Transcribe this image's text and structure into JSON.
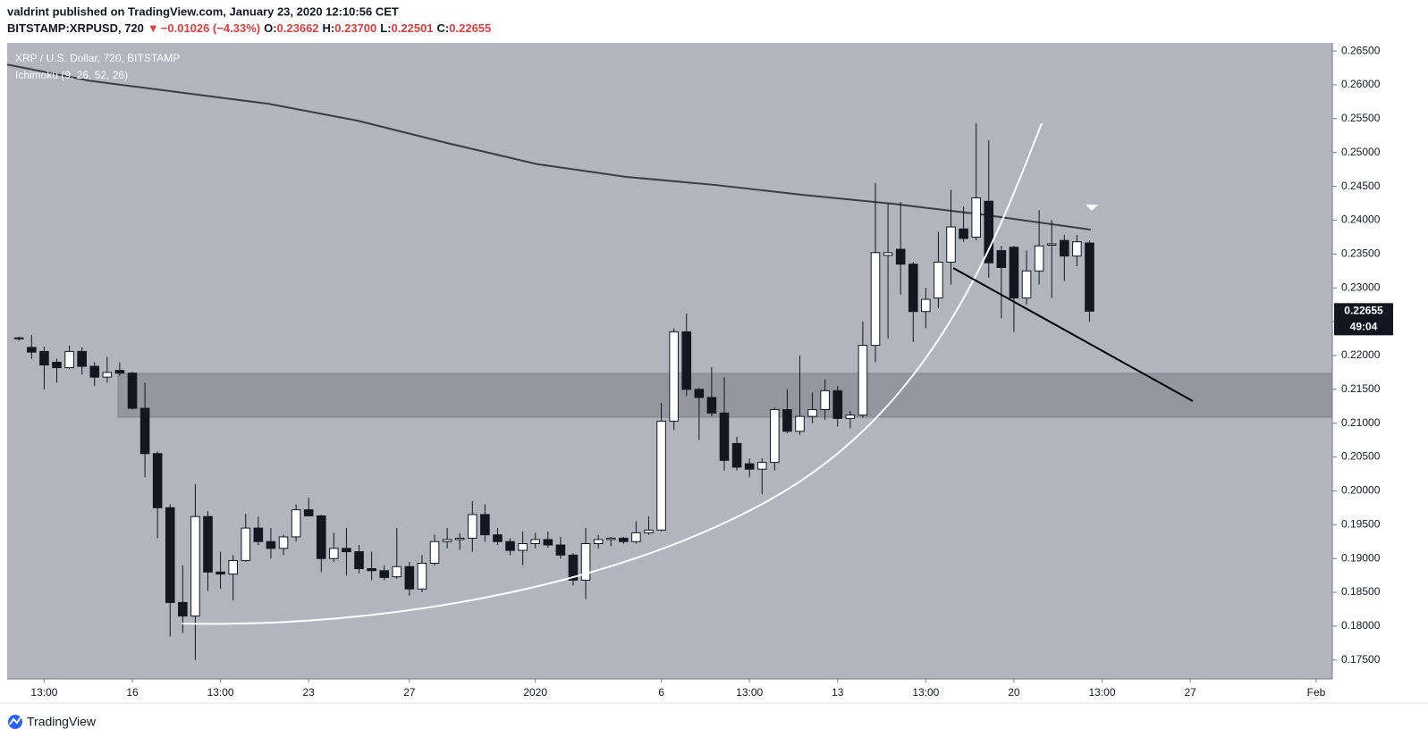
{
  "header": {
    "publisher": "valdrint published on TradingView.com, January 23, 2020 12:10:56 CET",
    "symbol": "BITSTAMP:XRPUSD, 720",
    "arrow": "▼",
    "change": "−0.01026 (−4.33%)",
    "o_label": "O:",
    "o": "0.23662",
    "h_label": "H:",
    "h": "0.23700",
    "l_label": "L:",
    "l": "0.22501",
    "c_label": "C:",
    "c": "0.22655"
  },
  "footer": {
    "brand": "TradingView"
  },
  "chart_data": {
    "type": "candlestick",
    "legend": [
      "XRP / U.S. Dollar, 720, BITSTAMP",
      "Ichimoku (9, 26, 52, 26)"
    ],
    "countdown": "49:04",
    "up_color": "#ffffff",
    "down_color": "#131722",
    "grid": false,
    "xlim": [
      11.03,
      63.64
    ],
    "ylim": [
      0.1722,
      0.2662
    ],
    "xticks": [
      {
        "value": 12.5,
        "label": "13:00"
      },
      {
        "value": 16,
        "label": "16"
      },
      {
        "value": 19.5,
        "label": "13:00"
      },
      {
        "value": 23,
        "label": "23"
      },
      {
        "value": 27,
        "label": "27"
      },
      {
        "value": 32,
        "label": "2020"
      },
      {
        "value": 37,
        "label": "6"
      },
      {
        "value": 40.5,
        "label": "13:00"
      },
      {
        "value": 44,
        "label": "13"
      },
      {
        "value": 47.5,
        "label": "13:00"
      },
      {
        "value": 51,
        "label": "20"
      },
      {
        "value": 54.5,
        "label": "13:00"
      },
      {
        "value": 58,
        "label": "27"
      },
      {
        "value": 63,
        "label": "Feb"
      }
    ],
    "yticks": [
      {
        "value": 0.175,
        "label": "0.17500"
      },
      {
        "value": 0.18,
        "label": "0.18000"
      },
      {
        "value": 0.185,
        "label": "0.18500"
      },
      {
        "value": 0.19,
        "label": "0.19000"
      },
      {
        "value": 0.195,
        "label": "0.19500"
      },
      {
        "value": 0.2,
        "label": "0.20000"
      },
      {
        "value": 0.205,
        "label": "0.20500"
      },
      {
        "value": 0.21,
        "label": "0.21000"
      },
      {
        "value": 0.215,
        "label": "0.21500"
      },
      {
        "value": 0.22,
        "label": "0.22000"
      },
      {
        "value": 0.225,
        "label": "0.22500"
      },
      {
        "value": 0.23,
        "label": "0.23000"
      },
      {
        "value": 0.235,
        "label": "0.23500"
      },
      {
        "value": 0.24,
        "label": "0.24000"
      },
      {
        "value": 0.245,
        "label": "0.24500"
      },
      {
        "value": 0.25,
        "label": "0.25000"
      },
      {
        "value": 0.255,
        "label": "0.25500"
      },
      {
        "value": 0.26,
        "label": "0.26000"
      },
      {
        "value": 0.265,
        "label": "0.26500"
      }
    ],
    "candles": {
      "x": [
        11.5,
        12,
        12.5,
        13,
        13.5,
        14,
        14.5,
        15,
        15.5,
        16,
        16.5,
        17,
        17.5,
        18,
        18.5,
        19,
        19.5,
        20,
        20.5,
        21,
        21.5,
        22,
        22.5,
        23,
        23.5,
        24,
        24.5,
        25,
        25.5,
        26,
        26.5,
        27,
        27.5,
        28,
        28.5,
        29,
        29.5,
        30,
        30.5,
        31,
        31.5,
        32,
        32.5,
        33,
        33.5,
        34,
        34.5,
        35,
        35.5,
        36,
        36.5,
        37,
        37.5,
        38,
        38.5,
        39,
        39.5,
        40,
        40.5,
        41,
        41.5,
        42,
        42.5,
        43,
        43.5,
        44,
        44.5,
        45,
        45.5,
        46,
        46.5,
        47,
        47.5,
        48,
        48.5,
        49,
        49.5,
        50,
        50.5,
        51,
        51.5,
        52,
        52.5,
        53,
        53.5,
        54
      ],
      "open": [
        0.2225,
        0.2212,
        0.2206,
        0.219,
        0.2182,
        0.2206,
        0.2184,
        0.2168,
        0.2178,
        0.2174,
        0.2122,
        0.2055,
        0.1975,
        0.1835,
        0.1815,
        0.1962,
        0.188,
        0.1877,
        0.1897,
        0.1945,
        0.1925,
        0.1915,
        0.1932,
        0.1972,
        0.1963,
        0.19,
        0.1915,
        0.191,
        0.1885,
        0.1882,
        0.1873,
        0.1888,
        0.1855,
        0.1893,
        0.1925,
        0.1928,
        0.193,
        0.1965,
        0.1935,
        0.1925,
        0.1912,
        0.1922,
        0.1928,
        0.192,
        0.1905,
        0.1868,
        0.1922,
        0.1928,
        0.193,
        0.1925,
        0.1938,
        0.1942,
        0.2103,
        0.2235,
        0.215,
        0.2138,
        0.2115,
        0.207,
        0.204,
        0.2032,
        0.2042,
        0.212,
        0.2088,
        0.211,
        0.212,
        0.2148,
        0.2107,
        0.2112,
        0.2215,
        0.2348,
        0.2357,
        0.2335,
        0.2265,
        0.2285,
        0.2338,
        0.2387,
        0.2375,
        0.2428,
        0.2355,
        0.236,
        0.2285,
        0.2325,
        0.2363,
        0.237,
        0.2347,
        0.23662
      ],
      "high": [
        0.2228,
        0.223,
        0.2213,
        0.2195,
        0.2215,
        0.2212,
        0.219,
        0.2198,
        0.219,
        0.2176,
        0.216,
        0.2058,
        0.198,
        0.189,
        0.201,
        0.197,
        0.191,
        0.1905,
        0.1966,
        0.1962,
        0.1945,
        0.1935,
        0.198,
        0.199,
        0.1965,
        0.1938,
        0.1945,
        0.192,
        0.191,
        0.189,
        0.1945,
        0.1895,
        0.1905,
        0.1935,
        0.1945,
        0.1937,
        0.1985,
        0.198,
        0.1945,
        0.193,
        0.194,
        0.1938,
        0.194,
        0.1932,
        0.1908,
        0.1945,
        0.1935,
        0.1932,
        0.1932,
        0.1955,
        0.1962,
        0.213,
        0.224,
        0.2262,
        0.2152,
        0.2183,
        0.2168,
        0.208,
        0.2048,
        0.2048,
        0.2123,
        0.215,
        0.22,
        0.2145,
        0.2165,
        0.2155,
        0.2118,
        0.225,
        0.2455,
        0.2425,
        0.2427,
        0.2338,
        0.23,
        0.2383,
        0.2445,
        0.242,
        0.2543,
        0.2518,
        0.2362,
        0.2362,
        0.2355,
        0.2415,
        0.24,
        0.2378,
        0.2378,
        0.237
      ],
      "low": [
        0.2222,
        0.2195,
        0.215,
        0.216,
        0.218,
        0.2172,
        0.2155,
        0.216,
        0.217,
        0.212,
        0.202,
        0.193,
        0.1785,
        0.179,
        0.175,
        0.1852,
        0.1855,
        0.1838,
        0.1895,
        0.192,
        0.19,
        0.1905,
        0.1925,
        0.1965,
        0.188,
        0.1895,
        0.1875,
        0.1878,
        0.1868,
        0.1868,
        0.187,
        0.1845,
        0.185,
        0.189,
        0.1915,
        0.1913,
        0.191,
        0.1925,
        0.192,
        0.1905,
        0.189,
        0.1915,
        0.1916,
        0.19,
        0.186,
        0.184,
        0.1915,
        0.1918,
        0.1922,
        0.1922,
        0.1935,
        0.194,
        0.209,
        0.214,
        0.2075,
        0.211,
        0.203,
        0.203,
        0.202,
        0.1995,
        0.203,
        0.2085,
        0.2083,
        0.21,
        0.2105,
        0.2095,
        0.2092,
        0.2108,
        0.219,
        0.2225,
        0.229,
        0.222,
        0.224,
        0.227,
        0.2305,
        0.2368,
        0.237,
        0.2315,
        0.2255,
        0.2235,
        0.2275,
        0.2305,
        0.2285,
        0.231,
        0.2332,
        0.22501
      ],
      "close": [
        0.2226,
        0.2205,
        0.2186,
        0.2182,
        0.2206,
        0.2184,
        0.2168,
        0.2175,
        0.2174,
        0.2122,
        0.2055,
        0.1975,
        0.1835,
        0.1815,
        0.1962,
        0.188,
        0.1877,
        0.1897,
        0.1945,
        0.1925,
        0.1915,
        0.1932,
        0.1972,
        0.1963,
        0.19,
        0.1915,
        0.191,
        0.1885,
        0.1882,
        0.1872,
        0.1888,
        0.1855,
        0.1893,
        0.1925,
        0.1928,
        0.193,
        0.1965,
        0.1935,
        0.1925,
        0.1912,
        0.1922,
        0.1928,
        0.192,
        0.1905,
        0.1868,
        0.1922,
        0.1928,
        0.193,
        0.1925,
        0.1938,
        0.1942,
        0.2103,
        0.2235,
        0.215,
        0.2138,
        0.2115,
        0.2045,
        0.2035,
        0.2032,
        0.2042,
        0.212,
        0.2088,
        0.211,
        0.212,
        0.2148,
        0.2107,
        0.2112,
        0.2215,
        0.2352,
        0.2352,
        0.2335,
        0.2265,
        0.2283,
        0.2338,
        0.239,
        0.2373,
        0.2433,
        0.2337,
        0.233,
        0.2285,
        0.2325,
        0.2362,
        0.2365,
        0.2347,
        0.2368,
        0.22655
      ]
    },
    "line": {
      "color": "#3b3d45",
      "x": [
        11.03,
        14.3,
        17.85,
        21.4,
        24.95,
        28.5,
        32.05,
        35.6,
        39.15,
        42.7,
        46.25,
        49.8,
        54.05
      ],
      "values": [
        0.263,
        0.2606,
        0.2589,
        0.2572,
        0.2547,
        0.2514,
        0.2483,
        0.2464,
        0.2452,
        0.2437,
        0.2424,
        0.2408,
        0.2386
      ]
    }
  }
}
